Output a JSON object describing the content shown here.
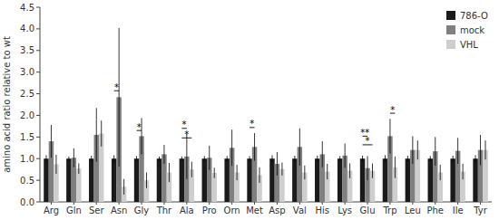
{
  "chart_data": {
    "type": "bar",
    "categories": [
      "Arg",
      "Gln",
      "Ser",
      "Asn",
      "Gly",
      "Thr",
      "Ala",
      "Pro",
      "Orn",
      "Met",
      "Asp",
      "Val",
      "His",
      "Lys",
      "Glu",
      "Trp",
      "Leu",
      "Phe",
      "Ile",
      "Tyr"
    ],
    "series": [
      {
        "name": "786-O",
        "color": "#1a1a1a",
        "values": [
          1.0,
          1.0,
          1.0,
          1.0,
          1.0,
          1.0,
          1.0,
          1.0,
          1.0,
          1.0,
          1.0,
          1.0,
          1.0,
          1.0,
          1.0,
          1.0,
          1.0,
          1.0,
          1.0,
          1.0
        ],
        "errors": [
          0.08,
          0.05,
          0.07,
          0.08,
          0.06,
          0.05,
          0.05,
          0.06,
          0.06,
          0.06,
          0.08,
          0.07,
          0.07,
          0.06,
          0.07,
          0.08,
          0.07,
          0.06,
          0.07,
          0.08
        ]
      },
      {
        "name": "mock",
        "color": "#808080",
        "values": [
          1.4,
          1.02,
          1.55,
          2.42,
          1.52,
          1.1,
          1.05,
          1.02,
          1.25,
          1.27,
          0.88,
          1.27,
          1.1,
          1.07,
          0.78,
          1.52,
          1.2,
          1.17,
          1.18,
          1.2
        ],
        "errors": [
          0.38,
          0.22,
          0.62,
          1.6,
          0.42,
          0.22,
          0.52,
          0.28,
          0.42,
          0.32,
          0.27,
          0.43,
          0.3,
          0.28,
          0.28,
          0.4,
          0.32,
          0.33,
          0.3,
          0.35
        ]
      },
      {
        "name": "VHL",
        "color": "#cecece",
        "values": [
          0.87,
          0.77,
          1.58,
          0.35,
          0.5,
          0.68,
          0.75,
          0.67,
          0.68,
          0.62,
          0.76,
          0.68,
          0.7,
          0.72,
          0.72,
          0.8,
          1.2,
          0.68,
          0.7,
          1.2
        ],
        "errors": [
          0.22,
          0.12,
          0.3,
          0.18,
          0.18,
          0.22,
          0.18,
          0.12,
          0.18,
          0.18,
          0.15,
          0.16,
          0.18,
          0.17,
          0.17,
          0.25,
          0.22,
          0.18,
          0.18,
          0.22
        ]
      }
    ],
    "y_label": "amino acid ratio relative to wt",
    "ylim": [
      0.0,
      4.5
    ],
    "yticks": [
      {
        "value": 0,
        "label": "0.0"
      },
      0.5,
      {
        "value": 1,
        "label": "1.0"
      },
      1.5,
      {
        "value": 2,
        "label": "2.0"
      },
      2.5,
      {
        "value": 3,
        "label": "3.0"
      },
      3.5,
      {
        "value": 4,
        "label": "4.0"
      },
      4.5
    ],
    "annotations": [
      {
        "text": "*",
        "category": "Asn",
        "series": [
          "786-O",
          "mock"
        ],
        "y": 2.57
      },
      {
        "text": "*",
        "category": "Gly",
        "series": [
          "786-O",
          "mock"
        ],
        "y": 1.65
      },
      {
        "text": "*",
        "category": "Ala",
        "series": [
          "786-O",
          "mock"
        ],
        "y": 1.7
      },
      {
        "text": "*",
        "category": "Ala",
        "series": [
          "786-O",
          "VHL"
        ],
        "y": 1.48
      },
      {
        "text": "*",
        "category": "Met",
        "series": [
          "786-O",
          "mock"
        ],
        "y": 1.72
      },
      {
        "text": "**",
        "category": "Glu",
        "series": [
          "786-O",
          "mock"
        ],
        "y": 1.52
      },
      {
        "text": "*",
        "category": "Glu",
        "series": [
          "786-O",
          "VHL"
        ],
        "y": 1.32
      },
      {
        "text": "*",
        "category": "Trp",
        "series": [
          "mock",
          "VHL"
        ],
        "y": 2.05
      }
    ],
    "grid": false,
    "legend": "upper right"
  }
}
